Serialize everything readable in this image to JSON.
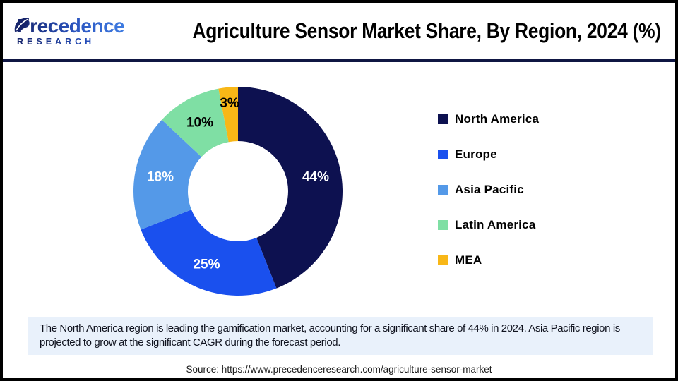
{
  "header": {
    "logo": {
      "brand": "Precedence",
      "sub": "RESEARCH"
    },
    "title": "Agriculture Sensor Market Share, By Region, 2024 (%)"
  },
  "chart_data": {
    "type": "pie",
    "donut": true,
    "title": "Agriculture Sensor Market Share, By Region, 2024 (%)",
    "categories": [
      "North America",
      "Europe",
      "Asia Pacific",
      "Latin America",
      "MEA"
    ],
    "values": [
      44,
      25,
      18,
      10,
      3
    ],
    "colors": [
      "#0d1150",
      "#1a50ee",
      "#5499e8",
      "#7fdfa4",
      "#f8b717"
    ],
    "label_colors": [
      "#ffffff",
      "#ffffff",
      "#ffffff",
      "#000000",
      "#000000"
    ],
    "value_suffix": "%",
    "start_angle": "top",
    "direction": "clockwise",
    "legend_position": "right"
  },
  "callout": {
    "text": "The North America region is leading the gamification market, accounting for a significant share of 44% in 2024. Asia Pacific region is projected to grow at the significant CAGR during the forecast period."
  },
  "source": {
    "text": "Source: https://www.precedenceresearch.com/agriculture-sensor-market"
  }
}
